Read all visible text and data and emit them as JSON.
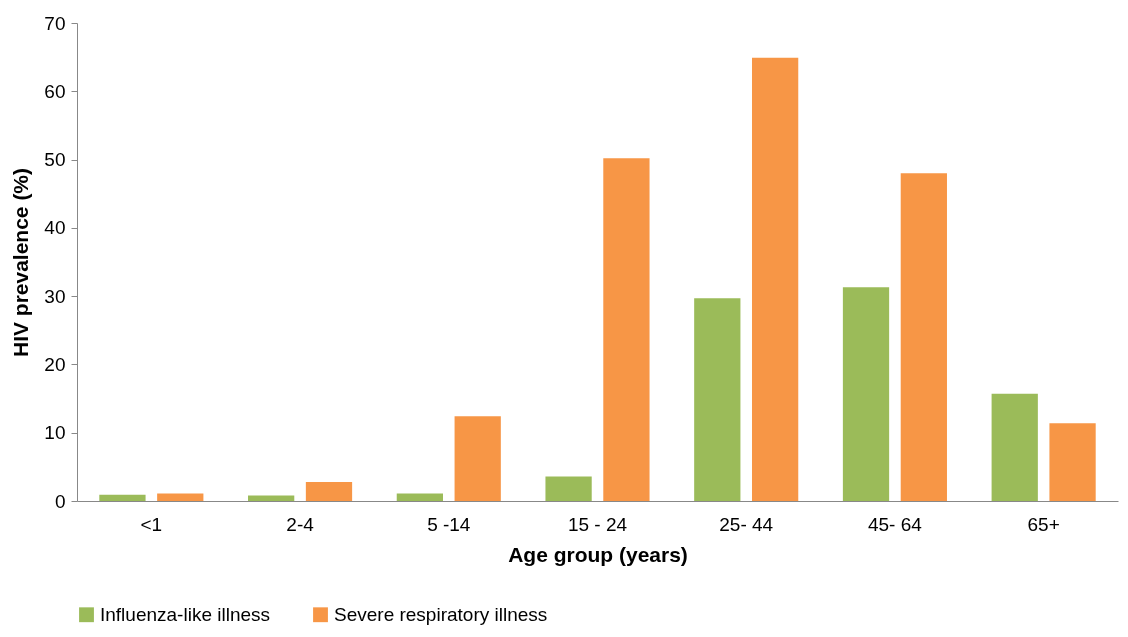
{
  "chart_data": {
    "type": "bar",
    "xlabel": "Age group (years)",
    "ylabel": "HIV prevalence (%)",
    "categories": [
      "<1",
      "2-4",
      "5 -14",
      "15 - 24",
      "25- 44",
      "45- 64",
      "65+"
    ],
    "series": [
      {
        "name": "Influenza-like illness",
        "color": "#9bbb59",
        "values": [
          0.9,
          0.8,
          1.1,
          3.6,
          29.7,
          31.3,
          15.7
        ]
      },
      {
        "name": "Severe respiratory illness",
        "color": "#f79646",
        "values": [
          1.1,
          2.8,
          12.4,
          50.2,
          64.9,
          48,
          11.4
        ]
      }
    ],
    "ylim": [
      0,
      70
    ],
    "yticks": [
      0,
      10,
      20,
      30,
      40,
      50,
      60,
      70
    ],
    "grid": false,
    "legend": "bottom"
  }
}
